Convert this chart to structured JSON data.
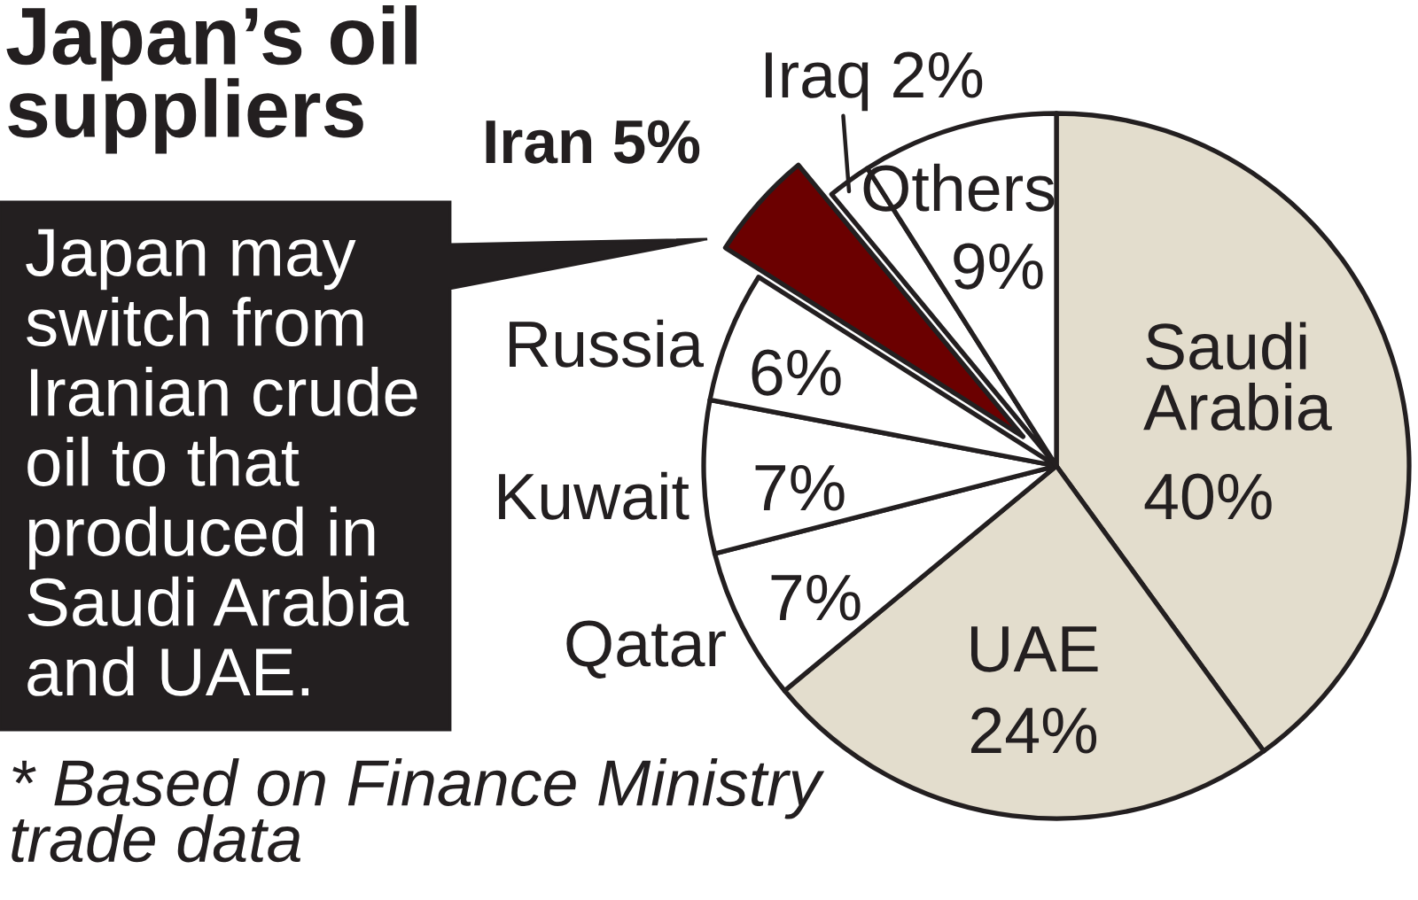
{
  "chart_data": {
    "type": "pie",
    "title": "Japan’s oil\nsuppliers",
    "categories": [
      "Saudi Arabia",
      "UAE",
      "Qatar",
      "Kuwait",
      "Russia",
      "Iran",
      "Iraq",
      "Others"
    ],
    "values": [
      40,
      24,
      7,
      7,
      6,
      5,
      2,
      9
    ],
    "colors": [
      "#e3ddcd",
      "#e3ddcd",
      "#ffffff",
      "#ffffff",
      "#ffffff",
      "#6b0000",
      "#ffffff",
      "#ffffff"
    ],
    "value_labels": [
      "40%",
      "24%",
      "7%",
      "7%",
      "6%",
      "5%",
      "2%",
      "9%"
    ],
    "annotations": [
      "Japan may\nswitch from\nIranian crude\noil to that\nproduced in\nSaudi Arabia\nand UAE.",
      "* Based on Finance Ministry\ntrade data"
    ]
  }
}
